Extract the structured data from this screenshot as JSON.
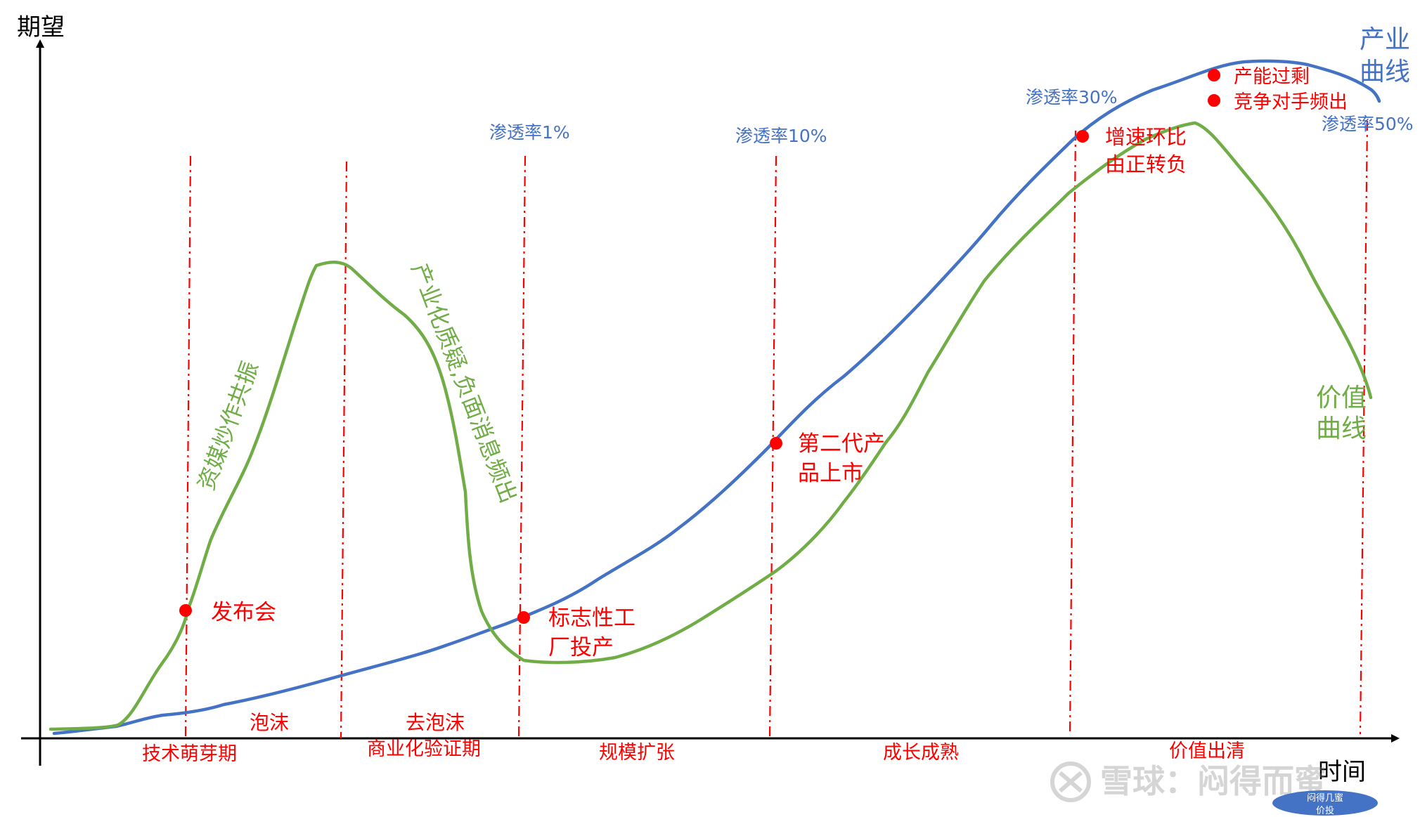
{
  "axes": {
    "y_label": "期望",
    "x_label": "时间"
  },
  "curves": {
    "industry_label_line1": "产业",
    "industry_label_line2": "曲线",
    "value_label_line1": "价值",
    "value_label_line2": "曲线",
    "industry_color": "#4472C4",
    "value_color": "#70AD47"
  },
  "penetration": {
    "p1": "渗透率1%",
    "p10": "渗透率10%",
    "p30": "渗透率30%",
    "p50": "渗透率50%"
  },
  "events": {
    "launch": "发布会",
    "factory_line1": "标志性工",
    "factory_line2": "厂投产",
    "gen2_line1": "第二代产",
    "gen2_line2": "品上市",
    "growth_line1": "增速环比",
    "growth_line2": "由正转负",
    "overcapacity": "产能过剩",
    "competitors": "竞争对手频出"
  },
  "annotations": {
    "hype": "资媒炒作共振",
    "doubt": "产业化质疑,负面消息频出"
  },
  "bubble": {
    "bubble": "泡沫",
    "debubble": "去泡沫"
  },
  "phases": {
    "p1": "技术萌芽期",
    "p2": "商业化验证期",
    "p3": "规模扩张",
    "p4": "成长成熟",
    "p5": "价值出清"
  },
  "watermark": {
    "text": "雪球：闷得而蜜",
    "badge_line1": "闷得几蜜",
    "badge_line2": "价投"
  }
}
